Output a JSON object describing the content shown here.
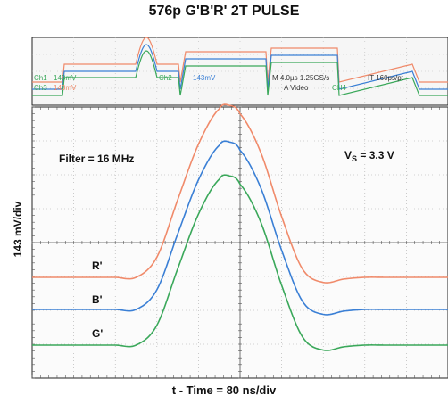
{
  "chart_data": {
    "type": "line",
    "title": "576p G'B'R' 2T PULSE",
    "xlabel": "t - Time = 80 ns/div",
    "ylabel": "143 mV/div",
    "xlim": [
      0,
      800
    ],
    "x_unit": "ns",
    "grid": true,
    "x": [
      0,
      80,
      160,
      200,
      240,
      280,
      320,
      360,
      380,
      400,
      440,
      480,
      520,
      560,
      600,
      640,
      680,
      720,
      800
    ],
    "series": [
      {
        "name": "R'",
        "color": "#f08a6a",
        "values": [
          0,
          0,
          0,
          0.0,
          0.12,
          0.46,
          0.79,
          1.0,
          1.02,
          0.97,
          0.74,
          0.36,
          0.05,
          -0.03,
          -0.01,
          0,
          0,
          0,
          0
        ]
      },
      {
        "name": "B'",
        "color": "#3a7fd5",
        "values": [
          0,
          0,
          0,
          0.0,
          0.12,
          0.46,
          0.79,
          1.0,
          1.02,
          0.97,
          0.74,
          0.36,
          0.05,
          -0.03,
          -0.01,
          0,
          0,
          0,
          0
        ]
      },
      {
        "name": "G'",
        "color": "#3aa85a",
        "values": [
          0,
          0,
          0,
          0.0,
          0.12,
          0.46,
          0.79,
          1.0,
          1.02,
          0.97,
          0.74,
          0.36,
          0.05,
          -0.03,
          -0.01,
          0,
          0,
          0,
          0
        ]
      }
    ],
    "annotations": {
      "filter": "Filter = 16 MHz",
      "vs_main": "V",
      "vs_sub": "S",
      "vs_value": " = 3.3 V"
    },
    "overview_text": {
      "ch1": "Ch1",
      "ch1_val": "143mV",
      "ch3": "Ch3",
      "ch3_val": "143mV",
      "ch2": "Ch2",
      "ch2_val": "143mV",
      "timebase": "M 4.0µs 1.25GS/s",
      "ip": "IT 160ps/pt",
      "trigger": "A  Video",
      "ch4": "CH4"
    }
  }
}
